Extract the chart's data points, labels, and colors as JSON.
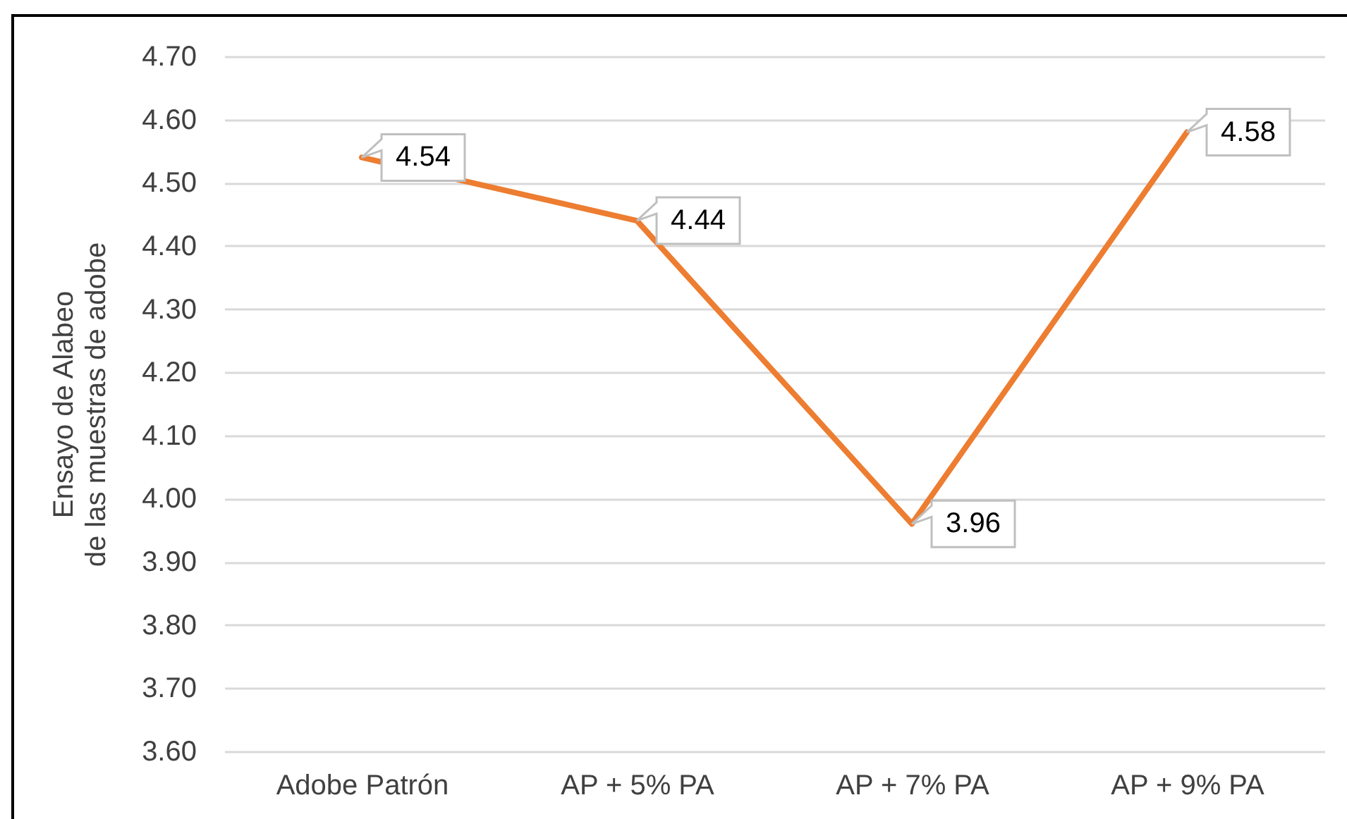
{
  "chart_data": {
    "type": "line",
    "ylabel": "Ensayo de Alabeo\nde las muestras de adobe",
    "categories": [
      "Adobe Patrón",
      "AP + 5% PA",
      "AP + 7% PA",
      "AP + 9% PA"
    ],
    "series": [
      {
        "color": "#ed7d31",
        "values": [
          4.54,
          4.44,
          3.96,
          4.58
        ]
      }
    ],
    "ylim": [
      3.6,
      4.7
    ],
    "yticks": [
      {
        "value": 3.6,
        "label": "3.60"
      },
      {
        "value": 3.7,
        "label": "3.70"
      },
      {
        "value": 3.8,
        "label": "3.80"
      },
      {
        "value": 3.9,
        "label": "3.90"
      },
      {
        "value": 4.0,
        "label": "4.00"
      },
      {
        "value": 4.1,
        "label": "4.10"
      },
      {
        "value": 4.2,
        "label": "4.20"
      },
      {
        "value": 4.3,
        "label": "4.30"
      },
      {
        "value": 4.4,
        "label": "4.40"
      },
      {
        "value": 4.5,
        "label": "4.50"
      },
      {
        "value": 4.6,
        "label": "4.60"
      },
      {
        "value": 4.7,
        "label": "4.70"
      }
    ],
    "grid": "y",
    "data_labels": true
  }
}
